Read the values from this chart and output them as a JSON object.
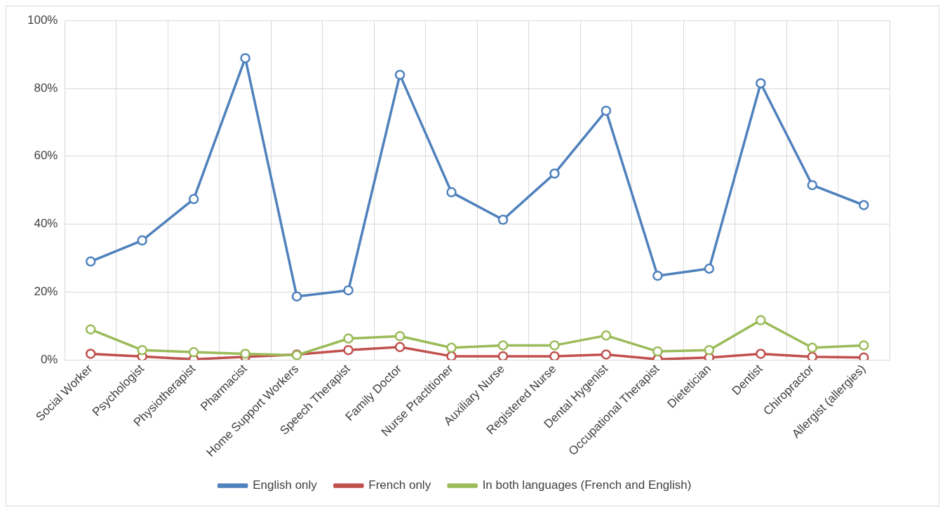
{
  "chart_data": {
    "type": "line",
    "categories": [
      "Social Worker",
      "Psychologist",
      "Physiotherapist",
      "Pharmacist",
      "Home Support Workers",
      "Speech Therapist",
      "Family Doctor",
      "Nurse Practitioner",
      "Auxiliary Nurse",
      "Registered Nurse",
      "Dental Hygenist",
      "Occupational Therapist",
      "Dietetician",
      "Dentist",
      "Chiropractor",
      "Allergist (allergies)"
    ],
    "series": [
      {
        "name": "English only",
        "color": "#4f81bd",
        "values": [
          29,
          35.2,
          47.4,
          88.9,
          18.7,
          20.5,
          84,
          49.4,
          41.3,
          54.9,
          73.4,
          24.8,
          26.9,
          81.5,
          51.5,
          45.6
        ]
      },
      {
        "name": "French only",
        "color": "#c0504d",
        "values": [
          1.8,
          1,
          0.2,
          0.9,
          1.6,
          2.9,
          3.8,
          1.1,
          1.1,
          1.1,
          1.6,
          0.2,
          0.7,
          1.8,
          0.9,
          0.7
        ]
      },
      {
        "name": "In both languages (French and English)",
        "color": "#9bbb59",
        "values": [
          9,
          2.9,
          2.3,
          1.8,
          1.4,
          6.3,
          7,
          3.6,
          4.3,
          4.3,
          7.2,
          2.5,
          2.9,
          11.7,
          3.6,
          4.3
        ]
      }
    ],
    "ylim": [
      0,
      100
    ],
    "yticks": [
      {
        "value": 0,
        "label": "0%"
      },
      {
        "value": 20,
        "label": "20%"
      },
      {
        "value": 40,
        "label": "40%"
      },
      {
        "value": 60,
        "label": "60%"
      },
      {
        "value": 80,
        "label": "80%"
      },
      {
        "value": 100,
        "label": "100%"
      }
    ],
    "grid": true,
    "legend": "bottom",
    "marker": "circle",
    "line_style": "solid"
  }
}
